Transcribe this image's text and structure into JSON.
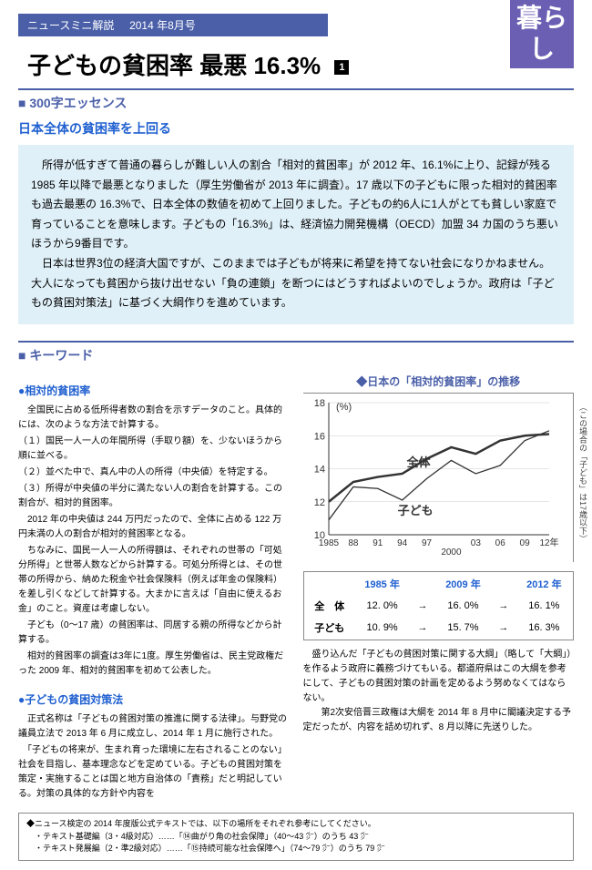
{
  "header": {
    "series": "ニュースミニ解説",
    "issue": "2014 年8月号"
  },
  "side_badge": "暮らし",
  "title": "子どもの貧困率 最悪 16.3%",
  "title_num": "1",
  "essence_head": "300字エッセンス",
  "subtitle": "日本全体の貧困率を上回る",
  "body_para1": "所得が低すぎて普通の暮らしが難しい人の割合「相対的貧困率」が 2012 年、16.1%に上り、記録が残る 1985 年以降で最悪となりました（厚生労働省が 2013 年に調査）。17 歳以下の子どもに限った相対的貧困率も過去最悪の 16.3%で、日本全体の数値を初めて上回りました。子どもの約6人に1人がとても貧しい家庭で育っていることを意味します。子どもの「16.3%」は、経済協力開発機構（OECD）加盟 34 カ国のうち悪いほうから9番目です。",
  "body_para2": "日本は世界3位の経済大国ですが、このままでは子どもが将来に希望を持てない社会になりかねません。大人になっても貧困から抜け出せない「負の連鎖」を断つにはどうすればよいのでしょうか。政府は「子どもの貧困対策法」に基づく大綱作りを進めています。",
  "keyword_head": "キーワード",
  "kw1": {
    "title": "相対的貧困率",
    "lines": [
      "　全国民に占める低所得者数の割合を示すデータのこと。具体的には、次のような方法で計算する。",
      "（１）国民一人一人の年間所得（手取り額）を、少ないほうから順に並べる。",
      "（２）並べた中で、真ん中の人の所得（中央値）を特定する。",
      "（３）所得が中央値の半分に満たない人の割合を計算する。この割合が、相対的貧困率。",
      "　2012 年の中央値は 244 万円だったので、全体に占める 122 万円未満の人の割合が相対的貧困率となる。",
      "　ちなみに、国民一人一人の所得額は、それぞれの世帯の「可処分所得」と世帯人数などから計算する。可処分所得とは、その世帯の所得から、納めた税金や社会保険料（例えば年金の保険料）を差し引くなどして計算する。大まかに言えば「自由に使えるお金」のこと。資産は考慮しない。",
      "　子ども（0～17 歳）の貧困率は、同居する親の所得などから計算する。",
      "　相対的貧困率の調査は3年に1度。厚生労働省は、民主党政権だった 2009 年、相対的貧困率を初めて公表した。"
    ]
  },
  "kw2": {
    "title": "子どもの貧困対策法",
    "lines": [
      "　正式名称は「子どもの貧困対策の推進に関する法律」。与野党の議員立法で 2013 年 6 月に成立し、2014 年 1 月に施行された。",
      "　「子どもの将来が、生まれ育った環境に左右されることのない」社会を目指し、基本理念などを定めている。子どもの貧困対策を策定・実施することは国と地方自治体の「責務」だと明記している。対策の具体的な方針や内容を"
    ]
  },
  "chart": {
    "title": "◆日本の「相対的貧困率」の推移",
    "ylabels": [
      "18",
      "16",
      "14",
      "12",
      "10"
    ],
    "yunit": "(%)",
    "xlabels": [
      "1985",
      "88",
      "91",
      "94",
      "97",
      "2000",
      "03",
      "06",
      "09",
      "12年"
    ],
    "series1_label": "全体",
    "series2_label": "子ども",
    "note": "（この場合の「子ども」は17歳以下）",
    "line_color": "#333333",
    "grid_color": "#cccccc",
    "series1": [
      12.0,
      13.2,
      13.5,
      13.7,
      14.6,
      15.3,
      14.9,
      15.7,
      16.0,
      16.1
    ],
    "series2": [
      10.9,
      12.9,
      12.8,
      12.1,
      13.4,
      14.5,
      13.7,
      14.2,
      15.7,
      16.3
    ],
    "ymin": 10,
    "ymax": 18
  },
  "table": {
    "years": [
      "1985 年",
      "2009 年",
      "2012 年"
    ],
    "rows": [
      {
        "label": "全　体",
        "vals": [
          "12. 0%",
          "→",
          "16. 0%",
          "→",
          "16. 1%"
        ]
      },
      {
        "label": "子ども",
        "vals": [
          "10. 9%",
          "→",
          "15. 7%",
          "→",
          "16. 3%"
        ]
      }
    ]
  },
  "bottom": [
    "盛り込んだ「子どもの貧困対策に関する大綱」（略して「大綱」）を作るよう政府に義務づけてもいる。都道府県はこの大綱を参考にして、子どもの貧困対策の計画を定めるよう努めなくてはならない。",
    "　第2次安倍晋三政権は大綱を 2014 年 8 月中に閣議決定する予定だったが、内容を詰め切れず、8 月以降に先送りした。"
  ],
  "footer": [
    "◆ニュース検定の 2014 年度版公式テキストでは、以下の場所をそれぞれ参考にしてください。",
    "・テキスト基礎編（3・4級対応）……「⑭曲がり角の社会保障」（40～43 ㌻）のうち 43 ㌻",
    "・テキスト発展編（2・準2級対応）……「⑮持続可能な社会保障へ」（74～79 ㌻）のうち 79 ㌻"
  ]
}
